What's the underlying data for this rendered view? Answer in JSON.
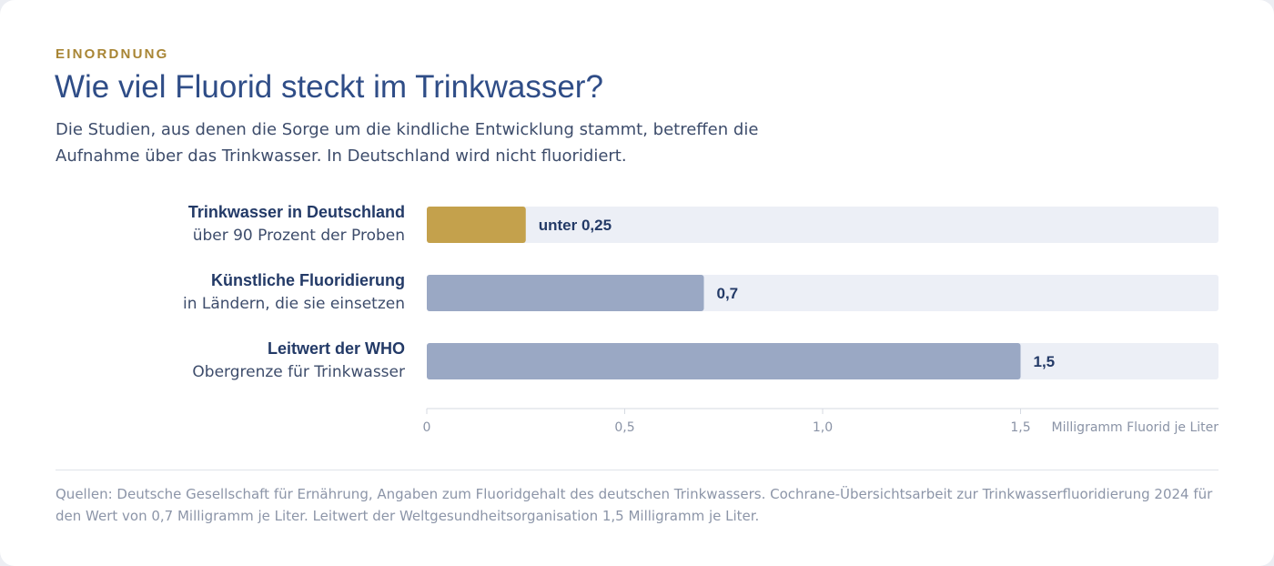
{
  "kicker": "EINORDNUNG",
  "title": "Wie viel Fluorid steckt im Trinkwasser?",
  "subtitle": "Die Studien, aus denen die Sorge um die kindliche Entwicklung stammt, betreffen die Aufnahme über das Trinkwasser. In Deutschland wird nicht fluoridiert.",
  "rows": [
    {
      "label": "Trinkwasser in Deutschland",
      "sublabel": "über 90 Prozent der Proben",
      "value_label": "unter 0,25"
    },
    {
      "label": "Künstliche Fluoridierung",
      "sublabel": "in Ländern, die sie einsetzen",
      "value_label": "0,7"
    },
    {
      "label": "Leitwert der WHO",
      "sublabel": "Obergrenze für Trinkwasser",
      "value_label": "1,5"
    }
  ],
  "sources": "Quellen: Deutsche Gesellschaft für Ernährung, Angaben zum Fluoridgehalt des deutschen Trinkwassers. Cochrane-Übersichtsarbeit zur Trinkwasserfluoridierung 2024 für den Wert von 0,7 Milligramm je Liter. Leitwert der Weltgesundheitsorganisation 1,5 Milligramm je Liter.",
  "colors": {
    "highlight": "#c4a14c",
    "bar": "#9aa8c4",
    "track": "#eceff6",
    "axis": "#d6dae2",
    "axis_text": "#8a93a6",
    "value_text": "#233a67"
  },
  "chart_data": {
    "type": "bar",
    "orientation": "horizontal",
    "categories": [
      "Trinkwasser in Deutschland",
      "Künstliche Fluoridierung",
      "Leitwert der WHO"
    ],
    "values": [
      0.25,
      0.7,
      1.5
    ],
    "xlim": [
      0,
      2.0
    ],
    "xticks": [
      0,
      0.5,
      1.0,
      1.5
    ],
    "xtick_labels": [
      "0",
      "0,5",
      "1,0",
      "1,5"
    ],
    "xlabel": "Milligramm Fluorid je Liter",
    "grid": false
  }
}
